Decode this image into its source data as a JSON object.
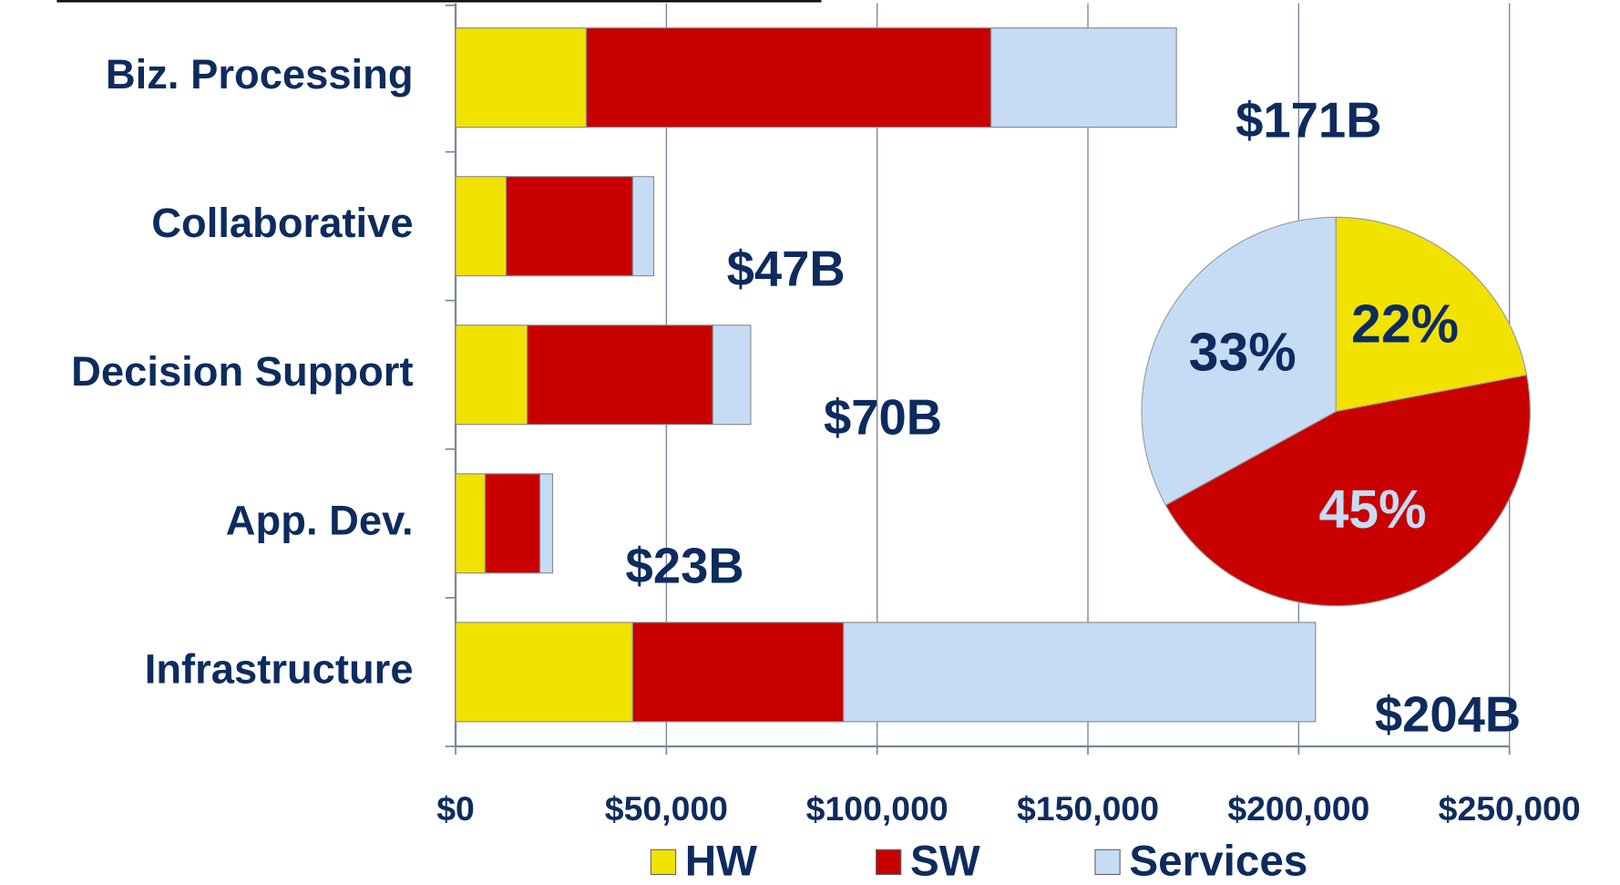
{
  "chart_data": [
    {
      "type": "stacked-barh",
      "categories": [
        "Biz. Processing",
        "Collaborative",
        "Decision Support",
        "App. Dev.",
        "Infrastructure"
      ],
      "series": [
        {
          "name": "HW",
          "color": "#f2e200",
          "values": [
            31000,
            12000,
            17000,
            7000,
            42000
          ]
        },
        {
          "name": "SW",
          "color": "#c80000",
          "values": [
            96000,
            30000,
            44000,
            13000,
            50000
          ]
        },
        {
          "name": "Services",
          "color": "#c6dcf5",
          "values": [
            44000,
            5000,
            9000,
            3000,
            112000
          ]
        }
      ],
      "annotations": [
        "$171B",
        "$47B",
        "$70B",
        "$23B",
        "$204B"
      ],
      "xlim": [
        0,
        250000
      ],
      "xticks": [
        {
          "value": 0,
          "label": "$0"
        },
        {
          "value": 50000,
          "label": "$50,000"
        },
        {
          "value": 100000,
          "label": "$100,000"
        },
        {
          "value": 150000,
          "label": "$150,000"
        },
        {
          "value": 200000,
          "label": "$200,000"
        },
        {
          "value": 250000,
          "label": "$250,000"
        }
      ],
      "grid": true,
      "legend": "bottom"
    },
    {
      "type": "pie",
      "values": [
        22,
        45,
        33
      ],
      "value_labels": [
        "22%",
        "45%",
        "33%"
      ],
      "colors": [
        "#f2e200",
        "#c80000",
        "#c6dcf5"
      ],
      "label_colors": [
        "#0d2b5e",
        "#c6dcf5",
        "#0d2b5e"
      ]
    }
  ]
}
